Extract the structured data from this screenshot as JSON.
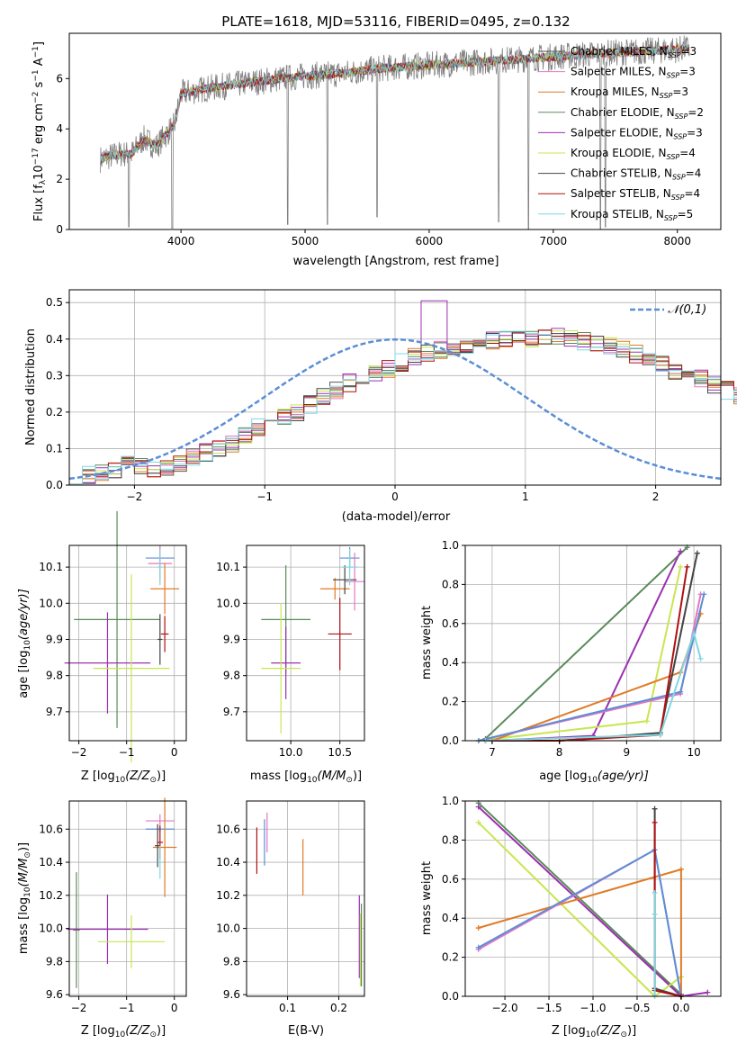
{
  "figure_title": "PLATE=1618, MJD=53116, FIBERID=0495, z=0.132",
  "series_colors": [
    "#555555",
    "#e377c2",
    "#e07b28",
    "#5a8a5a",
    "#9b30b0",
    "#c8e650",
    "#444444",
    "#b01010",
    "#7fd8e0"
  ],
  "chart_data": [
    {
      "id": "spectrum",
      "type": "line",
      "title": "PLATE=1618, MJD=53116, FIBERID=0495, z=0.132",
      "xlabel_main": "wavelength [Angstrom, rest frame]",
      "ylabel_main": "Flux [f",
      "ylabel_sub": "λ",
      "ylabel_rest": "10",
      "ylabel_exp1": "−17",
      "ylabel_mid": " erg cm",
      "ylabel_exp2": "−2",
      "ylabel_mid2": " s",
      "ylabel_exp3": "−1",
      "ylabel_end": " A",
      "ylabel_exp4": "−1",
      "ylabel_close": "]",
      "xlim": [
        3100,
        8350
      ],
      "ylim": [
        0,
        7.8
      ],
      "xticks": [
        4000,
        5000,
        6000,
        7000,
        8000
      ],
      "yticks": [
        0,
        2,
        4,
        6
      ],
      "legend_position": "top-right",
      "legend": [
        {
          "label": "Chabrier MILES, N",
          "sub": "SSP",
          "val": "=3",
          "color": "#555555"
        },
        {
          "label": "Salpeter MILES, N",
          "sub": "SSP",
          "val": "=3",
          "color": "#e377c2"
        },
        {
          "label": "Kroupa MILES, N",
          "sub": "SSP",
          "val": "=3",
          "color": "#e07b28"
        },
        {
          "label": "Chabrier ELODIE, N",
          "sub": "SSP",
          "val": "=2",
          "color": "#5a8a5a"
        },
        {
          "label": "Salpeter ELODIE, N",
          "sub": "SSP",
          "val": "=3",
          "color": "#9b30b0"
        },
        {
          "label": "Kroupa ELODIE, N",
          "sub": "SSP",
          "val": "=4",
          "color": "#c8e650"
        },
        {
          "label": "Chabrier STELIB, N",
          "sub": "SSP",
          "val": "=4",
          "color": "#444444"
        },
        {
          "label": "Salpeter STELIB, N",
          "sub": "SSP",
          "val": "=4",
          "color": "#b01010"
        },
        {
          "label": "Kroupa STELIB, N",
          "sub": "SSP",
          "val": "=5",
          "color": "#7fd8e0"
        }
      ],
      "continuum": [
        [
          3350,
          2.8
        ],
        [
          3500,
          3.0
        ],
        [
          3600,
          3.0
        ],
        [
          3700,
          3.6
        ],
        [
          3800,
          3.3
        ],
        [
          3950,
          4.2
        ],
        [
          4000,
          5.4
        ],
        [
          4200,
          5.6
        ],
        [
          4500,
          5.8
        ],
        [
          4800,
          6.0
        ],
        [
          5000,
          6.1
        ],
        [
          5300,
          6.2
        ],
        [
          5600,
          6.4
        ],
        [
          5900,
          6.5
        ],
        [
          6200,
          6.6
        ],
        [
          6500,
          6.7
        ],
        [
          6800,
          6.8
        ],
        [
          7100,
          6.9
        ],
        [
          7400,
          7.0
        ],
        [
          7800,
          7.1
        ],
        [
          8100,
          7.2
        ]
      ],
      "dips": [
        [
          3580,
          0.1
        ],
        [
          3930,
          0.05
        ],
        [
          4860,
          0.2
        ],
        [
          5180,
          0.2
        ],
        [
          5580,
          0.5
        ],
        [
          6560,
          0.3
        ],
        [
          6800,
          0.0
        ],
        [
          7380,
          0.0
        ],
        [
          7420,
          0.1
        ]
      ]
    },
    {
      "id": "residuals",
      "type": "line",
      "xlabel": "(data-model)/error",
      "ylabel": "Normed distribution",
      "xlim": [
        -2.5,
        2.5
      ],
      "ylim": [
        0,
        0.535
      ],
      "xticks": [
        -2,
        -1,
        0,
        1,
        2
      ],
      "yticks": [
        0.0,
        0.1,
        0.2,
        0.3,
        0.4,
        0.5
      ],
      "grid": true,
      "legend_position": "top-right",
      "gauss_label": "𝒩(0,1)",
      "gauss_color": "#5b8ed6",
      "bin_width": 0.1,
      "bins_start": -2.5,
      "hist_base": [
        0.027,
        0.028,
        0.032,
        0.045,
        0.055,
        0.05,
        0.045,
        0.05,
        0.06,
        0.075,
        0.09,
        0.1,
        0.115,
        0.14,
        0.16,
        0.18,
        0.19,
        0.2,
        0.22,
        0.245,
        0.26,
        0.28,
        0.29,
        0.305,
        0.32,
        0.335,
        0.35,
        0.36,
        0.37,
        0.375,
        0.385,
        0.39,
        0.395,
        0.4,
        0.4,
        0.4,
        0.405,
        0.41,
        0.4,
        0.395,
        0.39,
        0.38,
        0.37,
        0.36,
        0.345,
        0.33,
        0.315,
        0.3,
        0.29,
        0.275,
        0.26,
        0.245,
        0.23,
        0.215,
        0.2,
        0.185,
        0.17,
        0.155,
        0.14,
        0.125,
        0.11,
        0.1,
        0.09,
        0.08,
        0.07,
        0.063,
        0.057,
        0.053,
        0.05,
        0.047,
        0.045,
        0.043,
        0.04,
        0.037,
        0.035
      ]
    },
    {
      "id": "age_vs_Z",
      "type": "scatter",
      "xlabel": "Z [log",
      "xlabel_sub": "10",
      "xlabel_end": "(Z/Z",
      "xlabel_sub2": "⊙",
      "xlabel_close": ")]",
      "ylabel": "age  [log",
      "ylabel_sub": "10",
      "ylabel_end": "(age/yr)]",
      "xlim": [
        -2.2,
        0.25
      ],
      "ylim": [
        9.62,
        10.16
      ],
      "xticks": [
        -2,
        -1,
        0
      ],
      "yticks": [
        9.7,
        9.8,
        9.9,
        10.0,
        10.1
      ],
      "points": [
        {
          "x": -0.3,
          "y": 10.125,
          "xerr": 0.3,
          "yerr": 0.03,
          "color": "#5b8ed6"
        },
        {
          "x": -0.3,
          "y": 10.11,
          "xerr": 0.25,
          "yerr": 0.05,
          "color": "#e377c2"
        },
        {
          "x": -0.2,
          "y": 10.04,
          "xerr": 0.3,
          "yerr": 0.07,
          "color": "#e07b28"
        },
        {
          "x": -1.2,
          "y": 9.955,
          "xerr": 0.9,
          "yerr": 0.3,
          "color": "#5a8a5a"
        },
        {
          "x": -1.4,
          "y": 9.835,
          "xerr": 0.9,
          "yerr": 0.14,
          "color": "#9b30b0"
        },
        {
          "x": -0.9,
          "y": 9.82,
          "xerr": 0.8,
          "yerr": 0.26,
          "color": "#c8e650"
        },
        {
          "x": -0.3,
          "y": 9.9,
          "xerr": 0.05,
          "yerr": 0.07,
          "color": "#444444"
        },
        {
          "x": -0.2,
          "y": 9.915,
          "xerr": 0.08,
          "yerr": 0.05,
          "color": "#b01010"
        },
        {
          "x": -0.3,
          "y": 10.1,
          "xerr": 0.05,
          "yerr": 0.05,
          "color": "#7fd8e0"
        }
      ]
    },
    {
      "id": "age_vs_mass",
      "type": "scatter",
      "xlabel": "mass [log",
      "xlabel_sub": "10",
      "xlabel_end": "(M/M",
      "xlabel_sub2": "⊙",
      "xlabel_close": ")]",
      "xlim": [
        9.55,
        10.75
      ],
      "ylim": [
        9.62,
        10.16
      ],
      "xticks": [
        10.0,
        10.5
      ],
      "yticks": [
        9.7,
        9.8,
        9.9,
        10.0,
        10.1
      ],
      "points": [
        {
          "x": 10.6,
          "y": 10.125,
          "xerr": 0.1,
          "yerr": 0.03,
          "color": "#5b8ed6"
        },
        {
          "x": 10.65,
          "y": 10.06,
          "xerr": 0.1,
          "yerr": 0.08,
          "color": "#e377c2"
        },
        {
          "x": 10.45,
          "y": 10.04,
          "xerr": 0.15,
          "yerr": 0.03,
          "color": "#e07b28"
        },
        {
          "x": 9.95,
          "y": 9.955,
          "xerr": 0.25,
          "yerr": 0.15,
          "color": "#5a8a5a"
        },
        {
          "x": 9.95,
          "y": 9.835,
          "xerr": 0.15,
          "yerr": 0.1,
          "color": "#9b30b0"
        },
        {
          "x": 9.9,
          "y": 9.82,
          "xerr": 0.2,
          "yerr": 0.18,
          "color": "#c8e650"
        },
        {
          "x": 10.55,
          "y": 10.065,
          "xerr": 0.12,
          "yerr": 0.04,
          "color": "#444444"
        },
        {
          "x": 10.5,
          "y": 9.915,
          "xerr": 0.12,
          "yerr": 0.1,
          "color": "#b01010"
        },
        {
          "x": 10.6,
          "y": 10.1,
          "xerr": 0.08,
          "yerr": 0.05,
          "color": "#7fd8e0"
        }
      ]
    },
    {
      "id": "weight_vs_age",
      "type": "line",
      "xlabel": "age  [log",
      "xlabel_sub": "10",
      "xlabel_end": "(age/yr)]",
      "ylabel": "mass weight",
      "xlim": [
        6.6,
        10.4
      ],
      "ylim": [
        0,
        1.0
      ],
      "xticks": [
        7,
        8,
        9,
        10
      ],
      "yticks": [
        0.0,
        0.2,
        0.4,
        0.6,
        0.8,
        1.0
      ],
      "grid": true,
      "series": [
        {
          "color": "#5a8a5a",
          "x": [
            6.9,
            9.9
          ],
          "y": [
            0.01,
            0.99
          ]
        },
        {
          "color": "#9b30b0",
          "x": [
            7.0,
            8.5,
            9.8
          ],
          "y": [
            0.0,
            0.025,
            0.97
          ]
        },
        {
          "color": "#c8e650",
          "x": [
            6.8,
            9.3,
            9.8
          ],
          "y": [
            0.0,
            0.1,
            0.89
          ]
        },
        {
          "color": "#e07b28",
          "x": [
            7.0,
            9.8,
            10.1
          ],
          "y": [
            0.0,
            0.35,
            0.65
          ]
        },
        {
          "color": "#e377c2",
          "x": [
            6.8,
            9.8,
            10.1
          ],
          "y": [
            0.0,
            0.24,
            0.75
          ]
        },
        {
          "color": "#5b8ed6",
          "x": [
            6.8,
            9.8,
            10.15
          ],
          "y": [
            0.0,
            0.25,
            0.75
          ]
        },
        {
          "color": "#444444",
          "x": [
            6.9,
            8.0,
            9.5,
            10.05
          ],
          "y": [
            0.0,
            0.0,
            0.04,
            0.96
          ]
        },
        {
          "color": "#b01010",
          "x": [
            6.9,
            8.0,
            9.5,
            9.9
          ],
          "y": [
            0.0,
            0.0,
            0.03,
            0.89
          ]
        },
        {
          "color": "#7fd8e0",
          "x": [
            6.9,
            9.5,
            10.0,
            10.1
          ],
          "y": [
            0.0,
            0.03,
            0.55,
            0.42
          ]
        }
      ]
    },
    {
      "id": "mass_vs_Z",
      "type": "scatter",
      "xlabel": "Z [log",
      "xlabel_sub": "10",
      "xlabel_end": "(Z/Z",
      "xlabel_sub2": "⊙",
      "xlabel_close": ")]",
      "ylabel": "mass [log",
      "ylabel_sub": "10",
      "ylabel_end": "(M/M",
      "ylabel_sub2": "⊙",
      "ylabel_close": ")]",
      "xlim": [
        -2.2,
        0.25
      ],
      "ylim": [
        9.59,
        10.77
      ],
      "xticks": [
        -2,
        -1,
        0
      ],
      "yticks": [
        9.6,
        9.8,
        10.0,
        10.2,
        10.4,
        10.6
      ],
      "points": [
        {
          "x": -0.3,
          "y": 10.6,
          "xerr": 0.3,
          "yerr": 0.02,
          "color": "#5b8ed6"
        },
        {
          "x": -0.3,
          "y": 10.65,
          "xerr": 0.3,
          "yerr": 0.04,
          "color": "#e377c2"
        },
        {
          "x": -0.2,
          "y": 10.49,
          "xerr": 0.25,
          "yerr": 0.3,
          "color": "#e07b28"
        },
        {
          "x": -2.05,
          "y": 9.99,
          "xerr": 0.07,
          "yerr": 0.35,
          "color": "#5a8a5a"
        },
        {
          "x": -1.4,
          "y": 9.995,
          "xerr": 0.85,
          "yerr": 0.21,
          "color": "#9b30b0"
        },
        {
          "x": -0.9,
          "y": 9.92,
          "xerr": 0.7,
          "yerr": 0.16,
          "color": "#c8e650"
        },
        {
          "x": -0.35,
          "y": 10.5,
          "xerr": 0.06,
          "yerr": 0.13,
          "color": "#444444"
        },
        {
          "x": -0.3,
          "y": 10.52,
          "xerr": 0.06,
          "yerr": 0.1,
          "color": "#b01010"
        },
        {
          "x": -0.3,
          "y": 10.4,
          "xerr": 0.05,
          "yerr": 0.1,
          "color": "#7fd8e0"
        }
      ]
    },
    {
      "id": "mass_vs_ebv",
      "type": "scatter",
      "xlabel": "E(B-V)",
      "xlim": [
        0.02,
        0.25
      ],
      "ylim": [
        9.59,
        10.77
      ],
      "xticks": [
        0.1,
        0.2
      ],
      "yticks": [
        9.6,
        9.8,
        10.0,
        10.2,
        10.4,
        10.6
      ],
      "points": [
        {
          "x": 0.04,
          "y": 10.47,
          "yerr": 0.14,
          "color": "#b01010"
        },
        {
          "x": 0.055,
          "y": 10.52,
          "yerr": 0.14,
          "color": "#5b8ed6"
        },
        {
          "x": 0.06,
          "y": 10.58,
          "yerr": 0.12,
          "color": "#e377c2"
        },
        {
          "x": 0.13,
          "y": 10.37,
          "yerr": 0.17,
          "color": "#e07b28"
        },
        {
          "x": 0.24,
          "y": 9.95,
          "yerr": 0.25,
          "color": "#9b30b0"
        },
        {
          "x": 0.242,
          "y": 9.87,
          "yerr": 0.22,
          "color": "#c8e650"
        },
        {
          "x": 0.244,
          "y": 9.9,
          "yerr": 0.25,
          "color": "#5a8a5a"
        }
      ]
    },
    {
      "id": "weight_vs_Z",
      "type": "line",
      "xlabel": "Z [log",
      "xlabel_sub": "10",
      "xlabel_end": "(Z/Z",
      "xlabel_sub2": "⊙",
      "xlabel_close": ")]",
      "ylabel": "mass weight",
      "xlim": [
        -2.45,
        0.45
      ],
      "ylim": [
        0,
        1.0
      ],
      "xticks": [
        -2.0,
        -1.5,
        -1.0,
        -0.5,
        0.0
      ],
      "xtick_labels": [
        "−2.0",
        "−1.5",
        "−1.0",
        "−0.5",
        "0.0"
      ],
      "yticks": [
        0.0,
        0.2,
        0.4,
        0.6,
        0.8,
        1.0
      ],
      "grid": true,
      "series": [
        {
          "color": "#5a8a5a",
          "x": [
            -2.3,
            0.0
          ],
          "y": [
            0.99,
            0.01
          ]
        },
        {
          "color": "#9b30b0",
          "x": [
            -2.3,
            0.0,
            0.3
          ],
          "y": [
            0.97,
            0.0,
            0.02
          ]
        },
        {
          "color": "#c8e650",
          "x": [
            -2.3,
            -0.3,
            0.0
          ],
          "y": [
            0.89,
            0.0,
            0.1
          ]
        },
        {
          "color": "#e07b28",
          "x": [
            -2.3,
            0.0,
            0.0
          ],
          "y": [
            0.35,
            0.65,
            0.0
          ]
        },
        {
          "color": "#e377c2",
          "x": [
            -2.3,
            -0.3,
            0.0
          ],
          "y": [
            0.24,
            0.75,
            0.0
          ]
        },
        {
          "color": "#5b8ed6",
          "x": [
            -2.3,
            -0.3,
            0.0
          ],
          "y": [
            0.25,
            0.75,
            0.0
          ]
        },
        {
          "color": "#444444",
          "x": [
            -0.3,
            -0.3,
            0.0
          ],
          "y": [
            0.96,
            0.04,
            0.0
          ]
        },
        {
          "color": "#b01010",
          "x": [
            -0.3,
            -0.3,
            0.0
          ],
          "y": [
            0.89,
            0.03,
            0.0
          ]
        },
        {
          "color": "#7fd8e0",
          "x": [
            -0.3,
            -0.3,
            -0.3
          ],
          "y": [
            0.53,
            0.42,
            0.0
          ]
        }
      ]
    }
  ]
}
